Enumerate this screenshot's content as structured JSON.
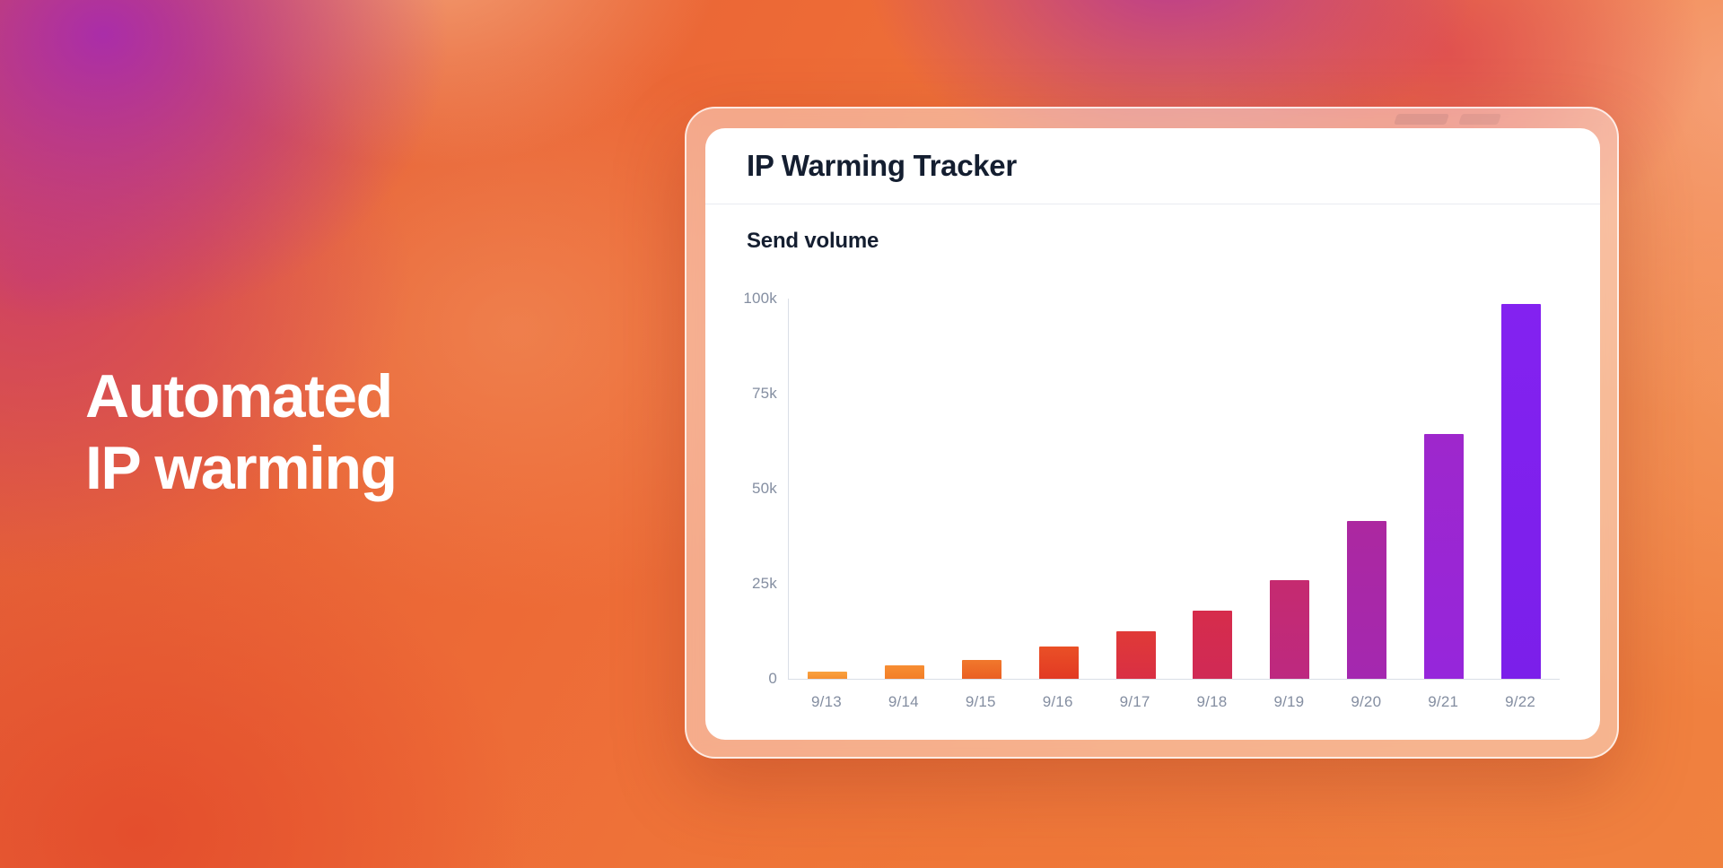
{
  "headline": {
    "line1": "Automated",
    "line2": "IP warming"
  },
  "card": {
    "title": "IP Warming Tracker"
  },
  "chart_data": {
    "type": "bar",
    "title": "Send volume",
    "xlabel": "",
    "ylabel": "",
    "ylim": [
      0,
      100000
    ],
    "grid": false,
    "legend": false,
    "categories": [
      "9/13",
      "9/14",
      "9/15",
      "9/16",
      "9/17",
      "9/18",
      "9/19",
      "9/20",
      "9/21",
      "9/22"
    ],
    "values": [
      2000,
      3500,
      5000,
      8500,
      12500,
      18000,
      26000,
      41500,
      64500,
      98500
    ],
    "y_ticks": [
      {
        "value": 100000,
        "label": "100k"
      },
      {
        "value": 75000,
        "label": "75k"
      },
      {
        "value": 50000,
        "label": "50k"
      },
      {
        "value": 25000,
        "label": "25k"
      },
      {
        "value": 0,
        "label": "0"
      }
    ],
    "bar_colors": [
      {
        "top": "#F9A240",
        "bottom": "#F68F2F"
      },
      {
        "top": "#F78E33",
        "bottom": "#F37E28"
      },
      {
        "top": "#F1782C",
        "bottom": "#EA5F23"
      },
      {
        "top": "#EA5026",
        "bottom": "#E23A24"
      },
      {
        "top": "#E03A37",
        "bottom": "#D92F44"
      },
      {
        "top": "#D62C4B",
        "bottom": "#D02A56"
      },
      {
        "top": "#C52A6F",
        "bottom": "#BD2980"
      },
      {
        "top": "#AC28A0",
        "bottom": "#A428B0"
      },
      {
        "top": "#9E27CC",
        "bottom": "#9626DB"
      },
      {
        "top": "#8322F0",
        "bottom": "#7B1FEA"
      }
    ],
    "axis_color": "#DADEE6",
    "label_color": "#848EA1",
    "text_color": "#141E30"
  }
}
